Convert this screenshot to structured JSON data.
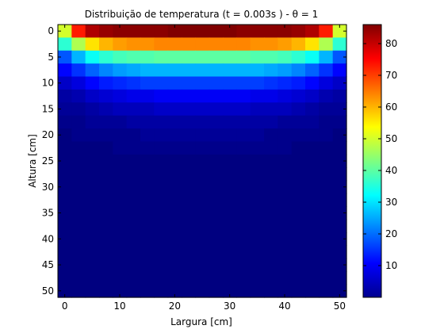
{
  "chart_data": {
    "type": "heatmap",
    "title": "Distribuição de temperatura (t = 0.003s ) - θ = 1",
    "xlabel": "Largura [cm]",
    "ylabel": "Altura [cm]",
    "xlim": [
      -1.25,
      51.25
    ],
    "ylim": [
      -1.25,
      51.25
    ],
    "y_direction": "reversed",
    "x_ticks": [
      0,
      10,
      20,
      30,
      40,
      50
    ],
    "y_ticks": [
      0,
      5,
      10,
      15,
      20,
      25,
      30,
      35,
      40,
      45,
      50
    ],
    "colormap": "jet",
    "color_range": [
      0,
      86
    ],
    "colorbar_ticks": [
      10,
      20,
      30,
      40,
      50,
      60,
      70,
      80
    ],
    "grid": false,
    "x_centers": [
      0,
      2.5,
      5,
      7.5,
      10,
      12.5,
      15,
      17.5,
      20,
      22.5,
      25,
      27.5,
      30,
      32.5,
      35,
      37.5,
      40,
      42.5,
      45,
      47.5,
      50
    ],
    "y_centers": [
      0,
      2.5,
      5,
      7.5,
      10,
      12.5,
      15,
      17.5,
      20,
      22.5,
      25,
      27.5,
      30,
      32.5,
      35,
      37.5,
      40,
      42.5,
      45,
      47.5,
      50
    ],
    "values": [
      [
        50,
        73,
        82,
        84,
        85,
        85,
        85,
        85,
        86,
        86,
        86,
        86,
        86,
        85,
        85,
        85,
        85,
        84,
        82,
        73,
        50
      ],
      [
        36,
        47,
        56,
        60,
        62,
        63,
        63,
        64,
        64,
        64,
        64,
        64,
        64,
        64,
        63,
        63,
        62,
        60,
        56,
        47,
        36
      ],
      [
        18,
        26,
        33,
        36,
        38,
        39,
        39,
        40,
        40,
        40,
        40,
        40,
        40,
        40,
        39,
        39,
        38,
        36,
        33,
        26,
        18
      ],
      [
        11,
        15,
        19,
        22,
        24,
        25,
        26,
        26,
        26,
        26,
        26,
        26,
        26,
        26,
        26,
        25,
        24,
        22,
        19,
        15,
        11
      ],
      [
        6,
        8,
        11,
        13,
        14,
        15,
        16,
        16,
        16,
        16,
        16,
        16,
        16,
        16,
        16,
        15,
        14,
        13,
        11,
        8,
        6
      ],
      [
        3,
        4,
        6,
        7,
        8,
        9,
        9,
        10,
        10,
        10,
        10,
        10,
        10,
        10,
        9,
        9,
        8,
        7,
        6,
        4,
        3
      ],
      [
        2,
        2,
        3,
        4,
        5,
        5,
        5,
        6,
        6,
        6,
        6,
        6,
        6,
        6,
        5,
        5,
        5,
        4,
        3,
        2,
        2
      ],
      [
        1,
        1,
        2,
        2,
        2,
        3,
        3,
        3,
        3,
        3,
        3,
        3,
        3,
        3,
        3,
        3,
        2,
        2,
        2,
        1,
        1
      ],
      [
        0,
        1,
        1,
        1,
        1,
        1,
        2,
        2,
        2,
        2,
        2,
        2,
        2,
        2,
        2,
        1,
        1,
        1,
        1,
        1,
        0
      ],
      [
        0,
        0,
        0,
        0,
        1,
        1,
        1,
        1,
        1,
        1,
        1,
        1,
        1,
        1,
        1,
        1,
        1,
        0,
        0,
        0,
        0
      ],
      [
        0,
        0,
        0,
        0,
        0,
        0,
        0,
        0,
        0,
        0,
        0,
        0,
        0,
        0,
        0,
        0,
        0,
        0,
        0,
        0,
        0
      ],
      [
        0,
        0,
        0,
        0,
        0,
        0,
        0,
        0,
        0,
        0,
        0,
        0,
        0,
        0,
        0,
        0,
        0,
        0,
        0,
        0,
        0
      ],
      [
        0,
        0,
        0,
        0,
        0,
        0,
        0,
        0,
        0,
        0,
        0,
        0,
        0,
        0,
        0,
        0,
        0,
        0,
        0,
        0,
        0
      ],
      [
        0,
        0,
        0,
        0,
        0,
        0,
        0,
        0,
        0,
        0,
        0,
        0,
        0,
        0,
        0,
        0,
        0,
        0,
        0,
        0,
        0
      ],
      [
        0,
        0,
        0,
        0,
        0,
        0,
        0,
        0,
        0,
        0,
        0,
        0,
        0,
        0,
        0,
        0,
        0,
        0,
        0,
        0,
        0
      ],
      [
        0,
        0,
        0,
        0,
        0,
        0,
        0,
        0,
        0,
        0,
        0,
        0,
        0,
        0,
        0,
        0,
        0,
        0,
        0,
        0,
        0
      ],
      [
        0,
        0,
        0,
        0,
        0,
        0,
        0,
        0,
        0,
        0,
        0,
        0,
        0,
        0,
        0,
        0,
        0,
        0,
        0,
        0,
        0
      ],
      [
        0,
        0,
        0,
        0,
        0,
        0,
        0,
        0,
        0,
        0,
        0,
        0,
        0,
        0,
        0,
        0,
        0,
        0,
        0,
        0,
        0
      ],
      [
        0,
        0,
        0,
        0,
        0,
        0,
        0,
        0,
        0,
        0,
        0,
        0,
        0,
        0,
        0,
        0,
        0,
        0,
        0,
        0,
        0
      ],
      [
        0,
        0,
        0,
        0,
        0,
        0,
        0,
        0,
        0,
        0,
        0,
        0,
        0,
        0,
        0,
        0,
        0,
        0,
        0,
        0,
        0
      ],
      [
        0,
        0,
        0,
        0,
        0,
        0,
        0,
        0,
        0,
        0,
        0,
        0,
        0,
        0,
        0,
        0,
        0,
        0,
        0,
        0,
        0
      ]
    ]
  }
}
